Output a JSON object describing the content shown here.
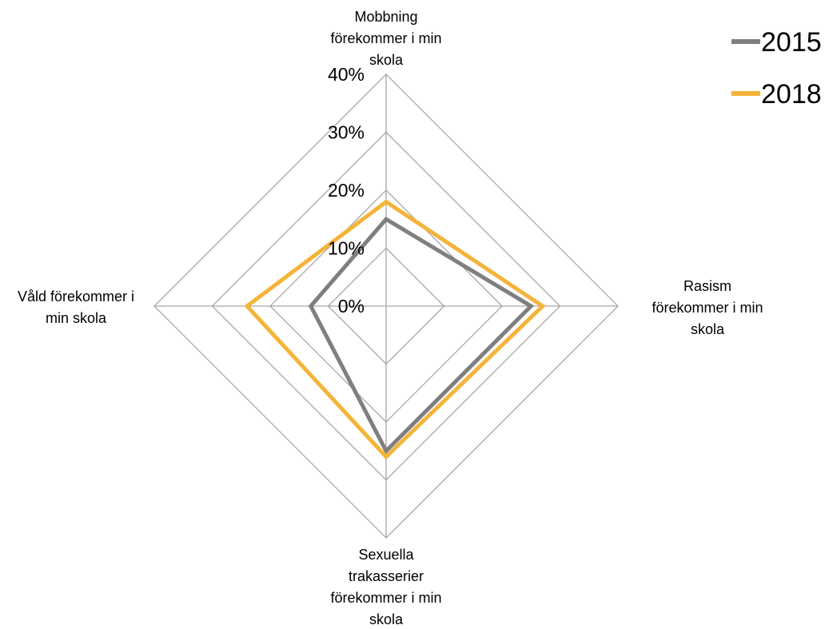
{
  "chart_data": {
    "type": "radar",
    "categories": [
      [
        "Mobbning",
        "förekommer i min",
        "skola"
      ],
      [
        "Rasism",
        "förekommer i min",
        "skola"
      ],
      [
        "Sexuella",
        "trakasserier",
        "förekommer i min",
        "skola"
      ],
      [
        "Våld förekommer i",
        "min skola"
      ]
    ],
    "ticks": [
      "0%",
      "10%",
      "20%",
      "30%",
      "40%"
    ],
    "rmax": 40,
    "series": [
      {
        "name": "2015",
        "color": "#7f7f7f",
        "values": [
          15,
          25,
          25,
          13
        ]
      },
      {
        "name": "2018",
        "color": "#f4b43a",
        "values": [
          18,
          27,
          26,
          24
        ]
      }
    ],
    "legend_position": "top-right",
    "grid": true
  }
}
